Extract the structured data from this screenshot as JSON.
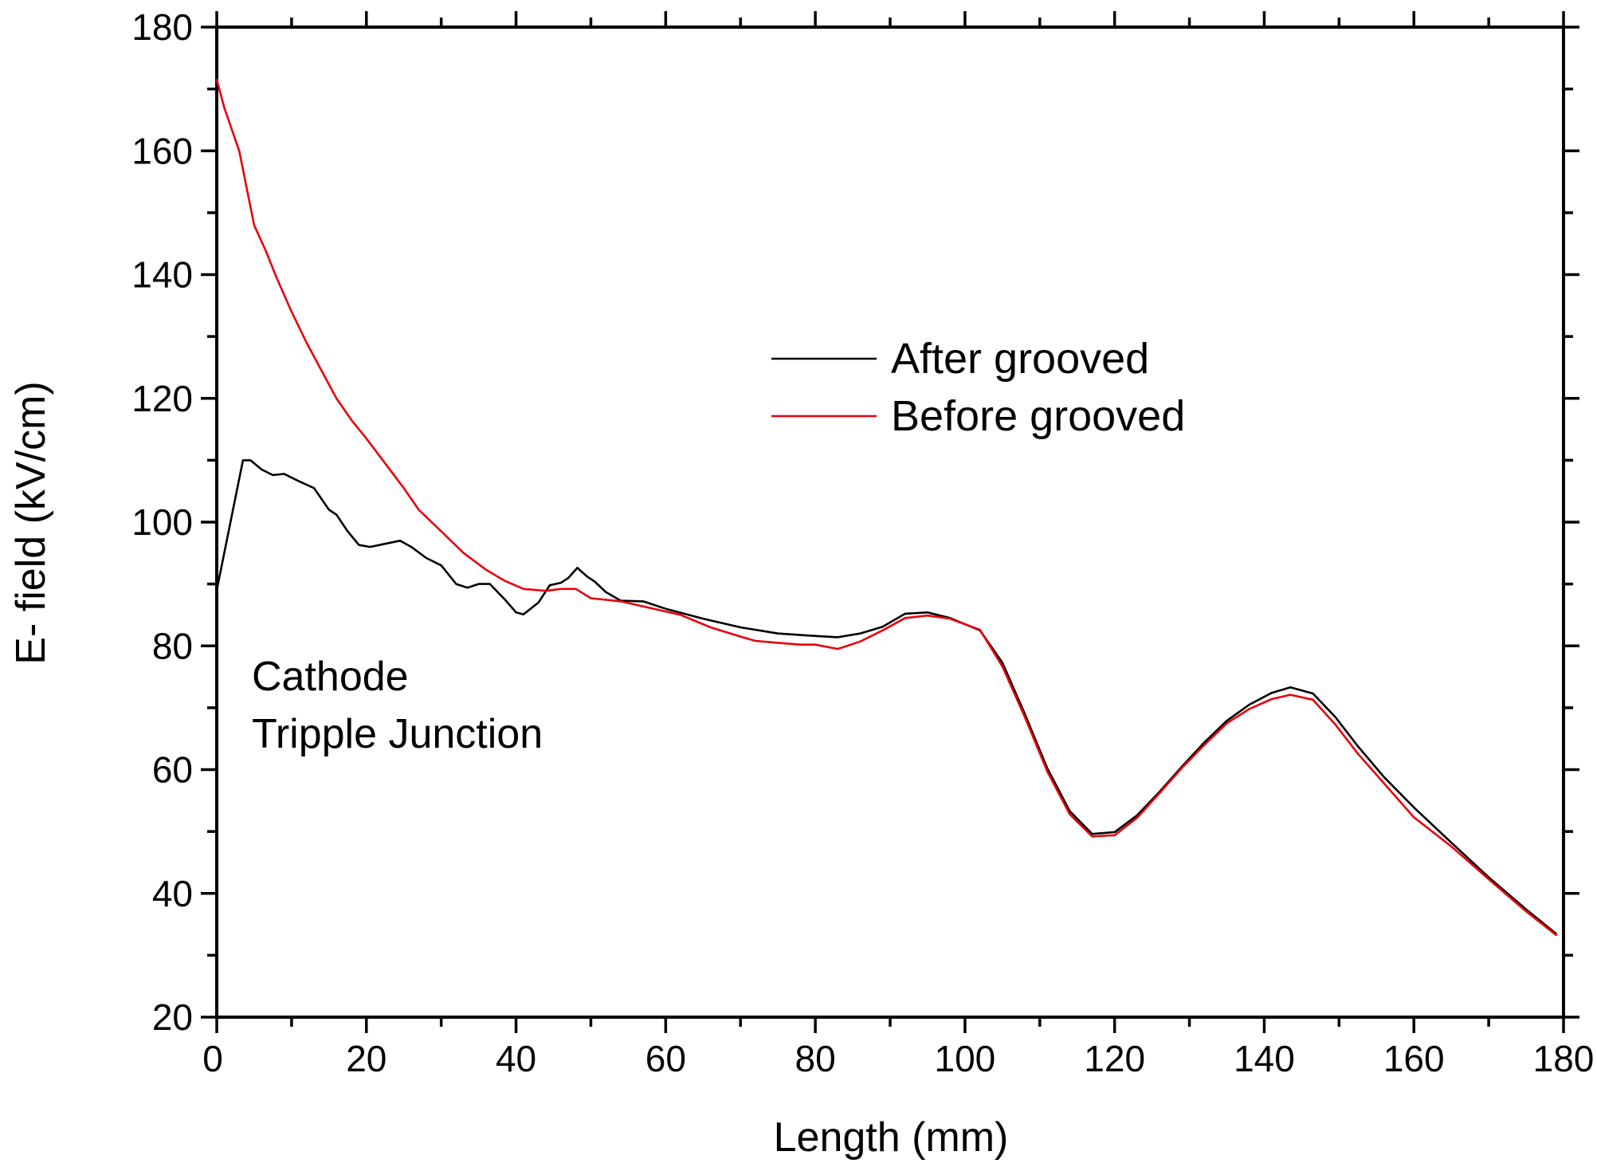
{
  "chart_data": {
    "type": "line",
    "title": "",
    "xlabel": "Length (mm)",
    "ylabel": "E- field (kV/cm)",
    "xlim": [
      0,
      180
    ],
    "ylim": [
      20,
      180
    ],
    "x_ticks": [
      0,
      20,
      40,
      60,
      80,
      100,
      120,
      140,
      160,
      180
    ],
    "y_ticks": [
      20,
      40,
      60,
      80,
      100,
      120,
      140,
      160,
      180
    ],
    "grid": false,
    "legend_position": "center-right",
    "annotation": [
      "Cathode",
      "Tripple Junction"
    ],
    "series": [
      {
        "name": "After grooved",
        "color": "#000000",
        "points": [
          [
            0,
            89
          ],
          [
            1,
            95
          ],
          [
            2.5,
            104
          ],
          [
            3.5,
            110
          ],
          [
            4.5,
            110
          ],
          [
            6,
            108.5
          ],
          [
            7.5,
            107.6
          ],
          [
            9,
            107.8
          ],
          [
            11,
            106.6
          ],
          [
            13,
            105.5
          ],
          [
            15,
            102
          ],
          [
            16,
            101.2
          ],
          [
            17.5,
            98.5
          ],
          [
            19,
            96.3
          ],
          [
            20.5,
            96
          ],
          [
            22.5,
            96.5
          ],
          [
            24.5,
            97
          ],
          [
            26,
            96
          ],
          [
            28,
            94.2
          ],
          [
            30,
            93
          ],
          [
            32,
            90
          ],
          [
            33.5,
            89.4
          ],
          [
            35,
            90
          ],
          [
            36.5,
            90
          ],
          [
            38.5,
            87.5
          ],
          [
            40,
            85.4
          ],
          [
            41,
            85.1
          ],
          [
            43,
            87
          ],
          [
            44.5,
            89.8
          ],
          [
            46,
            90.2
          ],
          [
            47,
            91
          ],
          [
            48.2,
            92.6
          ],
          [
            49.5,
            91.2
          ],
          [
            50.5,
            90.4
          ],
          [
            52,
            88.7
          ],
          [
            54,
            87.3
          ],
          [
            57,
            87.2
          ],
          [
            60,
            86
          ],
          [
            65,
            84.4
          ],
          [
            70,
            83
          ],
          [
            75,
            82
          ],
          [
            80,
            81.6
          ],
          [
            83,
            81.4
          ],
          [
            86,
            82
          ],
          [
            89,
            83.1
          ],
          [
            92,
            85.2
          ],
          [
            95,
            85.4
          ],
          [
            98,
            84.5
          ],
          [
            102,
            82.5
          ],
          [
            105,
            77.3
          ],
          [
            108,
            69
          ],
          [
            111,
            60.2
          ],
          [
            114,
            53.3
          ],
          [
            117,
            49.6
          ],
          [
            120,
            49.9
          ],
          [
            123,
            52.6
          ],
          [
            126,
            56.4
          ],
          [
            129,
            60.5
          ],
          [
            132,
            64.4
          ],
          [
            135,
            67.9
          ],
          [
            138,
            70.5
          ],
          [
            141,
            72.4
          ],
          [
            143.5,
            73.3
          ],
          [
            146.5,
            72.3
          ],
          [
            149.5,
            68.5
          ],
          [
            152.5,
            63.8
          ],
          [
            156,
            58.8
          ],
          [
            160,
            53.9
          ],
          [
            165,
            48.2
          ],
          [
            170,
            42.6
          ],
          [
            175,
            37.4
          ],
          [
            179,
            33.5
          ]
        ]
      },
      {
        "name": "Before grooved",
        "color": "#e8000b",
        "points": [
          [
            0,
            171.5
          ],
          [
            1,
            167
          ],
          [
            3,
            160
          ],
          [
            5,
            148
          ],
          [
            6.5,
            144
          ],
          [
            8,
            139.5
          ],
          [
            10,
            134
          ],
          [
            12,
            129
          ],
          [
            14,
            124.5
          ],
          [
            16,
            120
          ],
          [
            18,
            116.5
          ],
          [
            20,
            113.5
          ],
          [
            22.5,
            109.5
          ],
          [
            25,
            105.5
          ],
          [
            27,
            102
          ],
          [
            30,
            98.5
          ],
          [
            33,
            95
          ],
          [
            36,
            92.3
          ],
          [
            38.5,
            90.5
          ],
          [
            41,
            89.2
          ],
          [
            44,
            88.9
          ],
          [
            46,
            89.2
          ],
          [
            48,
            89.2
          ],
          [
            50,
            87.7
          ],
          [
            54,
            87.2
          ],
          [
            58,
            86.1
          ],
          [
            62,
            85
          ],
          [
            66,
            83
          ],
          [
            70,
            81.5
          ],
          [
            72,
            80.8
          ],
          [
            75,
            80.5
          ],
          [
            78,
            80.2
          ],
          [
            80,
            80.2
          ],
          [
            83,
            79.5
          ],
          [
            86,
            80.7
          ],
          [
            89,
            82.5
          ],
          [
            92,
            84.5
          ],
          [
            95,
            84.9
          ],
          [
            98,
            84.4
          ],
          [
            102,
            82.6
          ],
          [
            105,
            76.7
          ],
          [
            108,
            68.5
          ],
          [
            111,
            59.7
          ],
          [
            114,
            52.8
          ],
          [
            117,
            49.2
          ],
          [
            120,
            49.4
          ],
          [
            123,
            52.2
          ],
          [
            126,
            56.2
          ],
          [
            129,
            60.3
          ],
          [
            132,
            64
          ],
          [
            135,
            67.5
          ],
          [
            138,
            69.8
          ],
          [
            141,
            71.4
          ],
          [
            143.5,
            72.1
          ],
          [
            146.5,
            71.3
          ],
          [
            149.5,
            67.3
          ],
          [
            152.5,
            62.6
          ],
          [
            156,
            57.8
          ],
          [
            160,
            52.3
          ],
          [
            165,
            47.6
          ],
          [
            170,
            42.3
          ],
          [
            175,
            37.1
          ],
          [
            179,
            33.3
          ]
        ]
      }
    ]
  }
}
